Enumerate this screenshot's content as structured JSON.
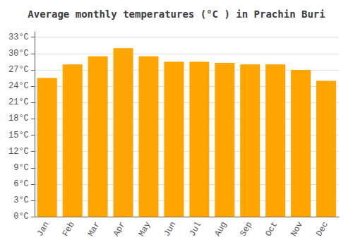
{
  "chart_data": {
    "type": "bar",
    "title": "Average monthly temperatures (°C ) in Prachin Buri",
    "categories": [
      "Jan",
      "Feb",
      "Mar",
      "Apr",
      "May",
      "Jun",
      "Jul",
      "Aug",
      "Sep",
      "Oct",
      "Nov",
      "Dec"
    ],
    "values": [
      25.5,
      28.0,
      29.5,
      31.0,
      29.5,
      28.5,
      28.5,
      28.3,
      28.0,
      28.0,
      27.0,
      25.0
    ],
    "color": "#FFA500",
    "ylim": [
      0,
      34
    ],
    "yticks": [
      {
        "value": 0,
        "label": "0°C"
      },
      {
        "value": 3,
        "label": "3°C"
      },
      {
        "value": 6,
        "label": "6°C"
      },
      {
        "value": 9,
        "label": "9°C"
      },
      {
        "value": 12,
        "label": "12°C"
      },
      {
        "value": 15,
        "label": "15°C"
      },
      {
        "value": 18,
        "label": "18°C"
      },
      {
        "value": 21,
        "label": "21°C"
      },
      {
        "value": 24,
        "label": "24°C"
      },
      {
        "value": 27,
        "label": "27°C"
      },
      {
        "value": 30,
        "label": "30°C"
      },
      {
        "value": 33,
        "label": "33°C"
      }
    ],
    "grid": true
  }
}
